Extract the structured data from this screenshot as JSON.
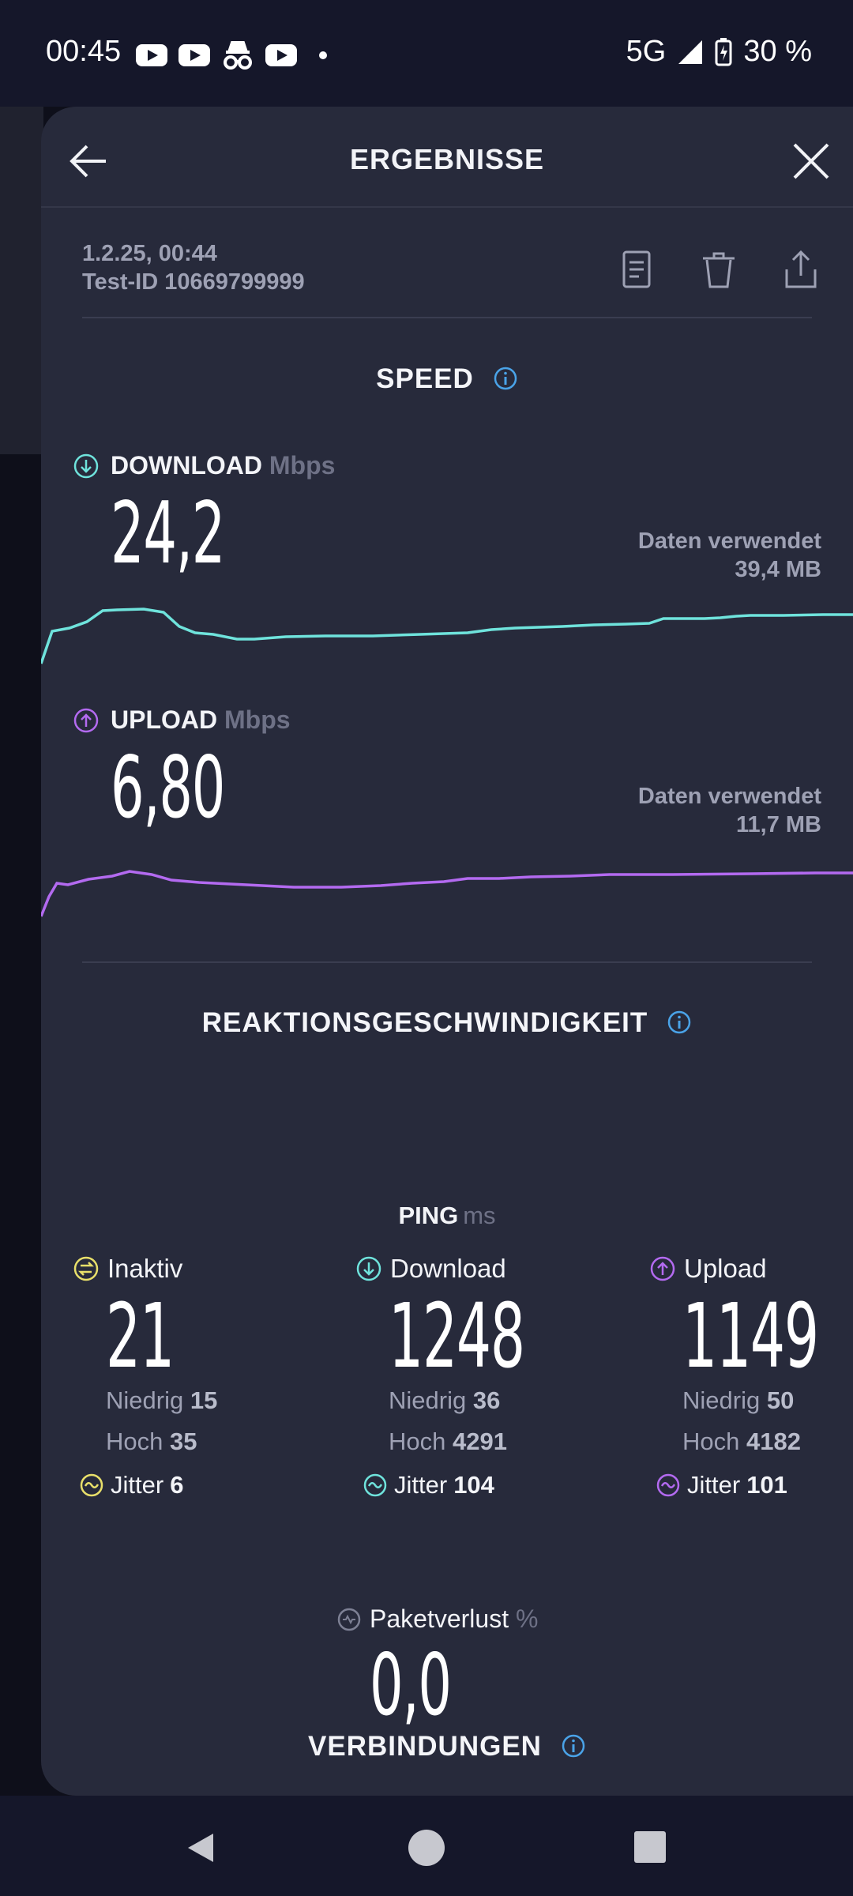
{
  "status_bar": {
    "time": "00:45",
    "network": "5G",
    "battery": "30 %"
  },
  "header": {
    "title": "ERGEBNISSE"
  },
  "meta": {
    "date": "1.2.25, 00:44",
    "test_id": "Test-ID 10669799999"
  },
  "speed": {
    "title": "SPEED",
    "download": {
      "label": "DOWNLOAD",
      "unit": "Mbps",
      "value": "24,2",
      "data_used_label": "Daten verwendet",
      "data_used": "39,4 MB",
      "color": "#6fe3dc"
    },
    "upload": {
      "label": "UPLOAD",
      "unit": "Mbps",
      "value": "6,80",
      "data_used_label": "Daten verwendet",
      "data_used": "11,7 MB",
      "color": "#b36af0"
    }
  },
  "latency": {
    "title": "REAKTIONSGESCHWINDIGKEIT",
    "ping_label": "PING",
    "ping_unit": "ms",
    "columns": [
      {
        "label": "Inaktiv",
        "value": "21",
        "low_label": "Niedrig",
        "low": "15",
        "high_label": "Hoch",
        "high": "35",
        "jitter_label": "Jitter",
        "jitter": "6",
        "color": "#e8df6a"
      },
      {
        "label": "Download",
        "value": "1248",
        "low_label": "Niedrig",
        "low": "36",
        "high_label": "Hoch",
        "high": "4291",
        "jitter_label": "Jitter",
        "jitter": "104",
        "color": "#6fe3dc"
      },
      {
        "label": "Upload",
        "value": "1149",
        "low_label": "Niedrig",
        "low": "50",
        "high_label": "Hoch",
        "high": "4182",
        "jitter_label": "Jitter",
        "jitter": "101",
        "color": "#b36af0"
      }
    ],
    "packet_loss": {
      "label": "Paketverlust",
      "unit": "%",
      "value": "0,0"
    }
  },
  "connections": {
    "title": "VERBINDUNGEN"
  }
}
